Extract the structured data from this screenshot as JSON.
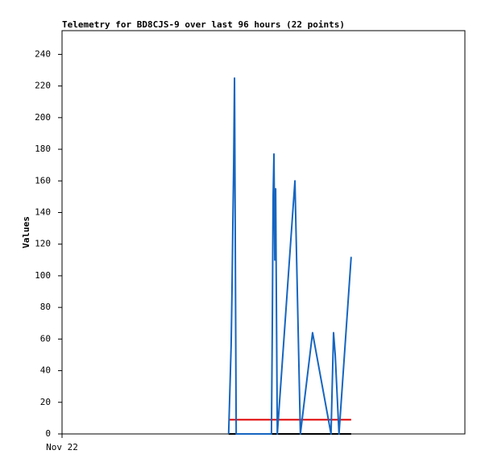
{
  "chart_data": {
    "type": "line",
    "title": "Telemetry for BD8CJS-9 over last 96 hours (22 points)",
    "y_label": "Values",
    "x": [
      39.7,
      40.3,
      40.5,
      40.7,
      40.9,
      41.1,
      41.5,
      49.9,
      50.1,
      50.3,
      50.5,
      50.7,
      50.9,
      51.3,
      55.5,
      56.8,
      59.7,
      64.1,
      64.7,
      65.1,
      66.0,
      68.9
    ],
    "series": [
      {
        "color": "#1565c0",
        "values": [
          0,
          56,
          90,
          132,
          170,
          225,
          0,
          0,
          65,
          150,
          177,
          110,
          155,
          0,
          160,
          0,
          64,
          0,
          64,
          50,
          0,
          112
        ]
      },
      {
        "color": "#e00000",
        "values": [
          9,
          9,
          9,
          9,
          9,
          9,
          9,
          9,
          9,
          9,
          9,
          9,
          9,
          9,
          9,
          9,
          9,
          9,
          9,
          9,
          9,
          9
        ]
      },
      {
        "color": "#000000",
        "values": [
          0,
          0,
          0,
          0,
          0,
          0,
          0,
          0,
          0,
          0,
          0,
          0,
          0,
          0,
          0,
          0,
          0,
          0,
          0,
          0,
          0,
          0
        ]
      }
    ],
    "xlim": [
      0,
      96
    ],
    "xticks": [
      {
        "value": 0,
        "label": "Nov 22"
      }
    ],
    "ylim": [
      0,
      255
    ],
    "yticks": [
      0,
      20,
      40,
      60,
      80,
      100,
      120,
      140,
      160,
      180,
      200,
      220,
      240
    ]
  }
}
